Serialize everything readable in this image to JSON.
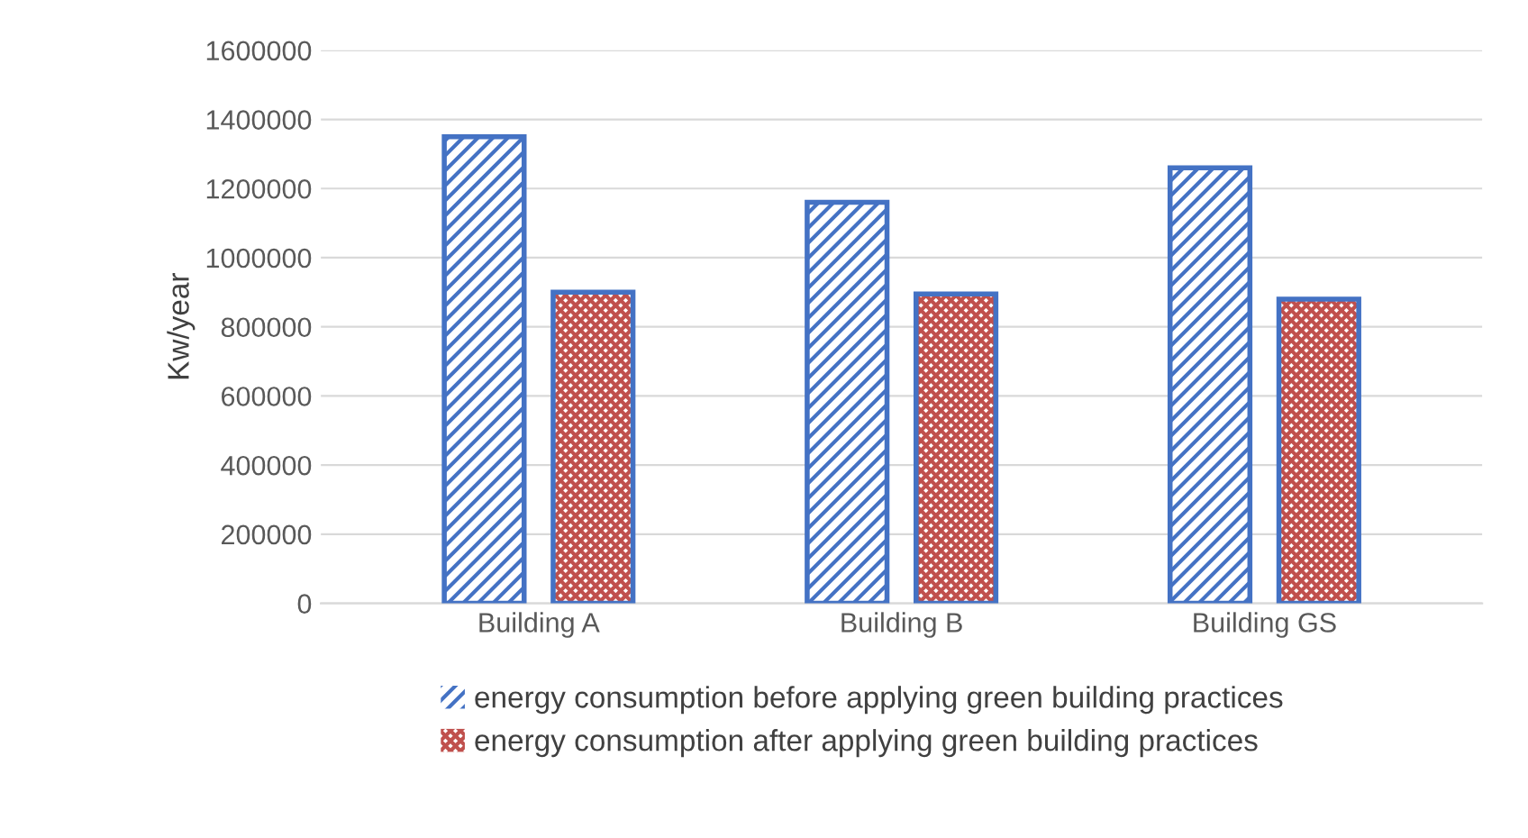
{
  "chart_data": {
    "type": "bar",
    "ylabel": "Kw/year",
    "categories": [
      "Building A",
      "Building B",
      "Building GS"
    ],
    "series": [
      {
        "name": "energy consumption before applying green building practices",
        "color": "#4472c4",
        "values": [
          1350000,
          1160000,
          1260000
        ]
      },
      {
        "name": "energy consumption after applying green building practices",
        "color": "#c0504d",
        "values": [
          900000,
          895000,
          880000
        ]
      }
    ],
    "ylim": [
      0,
      1600000
    ],
    "yticks": [
      0,
      200000,
      400000,
      600000,
      800000,
      1000000,
      1200000,
      1400000,
      1600000
    ],
    "grid": "y",
    "legend": "bottom"
  }
}
